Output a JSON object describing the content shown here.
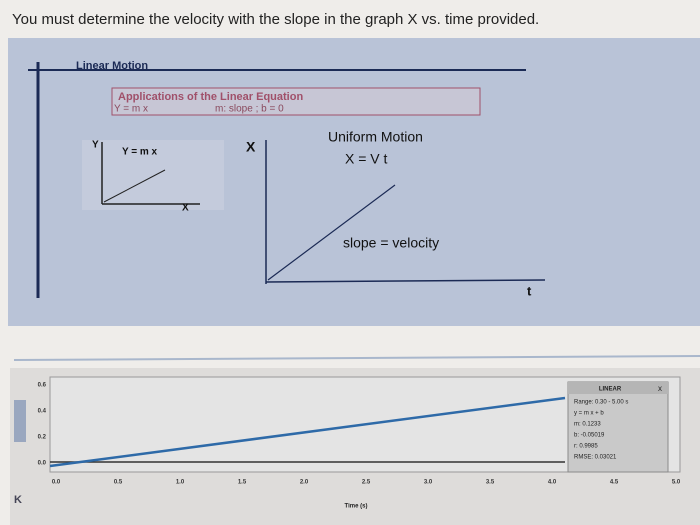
{
  "heading": "You must determine the velocity with the slope in the graph X vs. time provided.",
  "slide": {
    "title": "Linear Motion",
    "box": {
      "title": "Applications of the Linear Equation",
      "equation": "Y = m x",
      "note": "m: slope ;  b = 0"
    },
    "small_graph": {
      "y_label": "Y",
      "equation": "Y = m x",
      "x_label": "X"
    },
    "big_graph": {
      "y_label": "X",
      "title": "Uniform Motion",
      "equation": "X = V t",
      "slope_note": "slope = velocity",
      "x_label": "t"
    }
  },
  "bottom_chart": {
    "y_tick_labels": [
      "0.6",
      "0.4",
      "0.2",
      "0.0"
    ],
    "x_tick_labels": [
      "0.0",
      "0.5",
      "1.0",
      "1.5",
      "2.0",
      "2.5",
      "3.0",
      "3.5",
      "4.0",
      "4.5",
      "5.0"
    ],
    "x_label": "Time (s)",
    "fit_panel": {
      "title": "LINEAR",
      "close": "x",
      "lines": [
        "Range: 0.30 - 5.00 s",
        "y = m x + b",
        "m: 0.1233",
        "b: -0.05019",
        "r: 0.9985",
        "RMSE: 0.03021"
      ]
    }
  }
}
